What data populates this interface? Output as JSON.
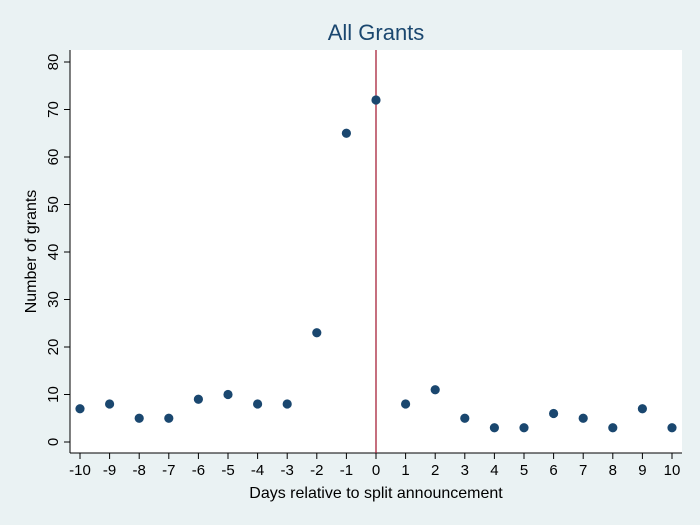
{
  "chart_data": {
    "type": "scatter",
    "title": "All Grants",
    "xlabel": "Days relative to split announcement",
    "ylabel": "Number of grants",
    "xlim": [
      -10,
      10
    ],
    "ylim": [
      0,
      80
    ],
    "xticks": [
      "-10",
      "-9",
      "-8",
      "-7",
      "-6",
      "-5",
      "-4",
      "-3",
      "-2",
      "-1",
      "0",
      "1",
      "2",
      "3",
      "4",
      "5",
      "6",
      "7",
      "8",
      "9",
      "10"
    ],
    "yticks": [
      "0",
      "10",
      "20",
      "30",
      "40",
      "50",
      "60",
      "70",
      "80"
    ],
    "grid": false,
    "legend": "none",
    "reference_line": {
      "x": 0,
      "color": "#a0102a"
    },
    "series": [
      {
        "color": "#1a476f",
        "x": [
          -10,
          -9,
          -8,
          -7,
          -6,
          -5,
          -4,
          -3,
          -2,
          -1,
          0,
          1,
          2,
          3,
          4,
          5,
          6,
          7,
          8,
          9,
          10
        ],
        "y": [
          7,
          8,
          5,
          5,
          9,
          10,
          8,
          8,
          23,
          65,
          72,
          8,
          11,
          5,
          3,
          3,
          6,
          5,
          3,
          7,
          3
        ]
      }
    ]
  },
  "colors": {
    "background": "#eaf2f3",
    "plot_background": "#ffffff",
    "marker": "#1a476f",
    "reference_line": "#a0102a",
    "title": "#1a476f"
  }
}
